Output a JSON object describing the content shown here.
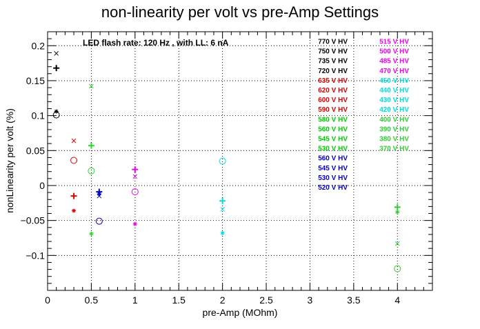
{
  "chart_data": {
    "type": "scatter",
    "title": "non-linearity per volt vs pre-Amp Settings",
    "annotation": "LED flash rate: 120 Hz , with LL: 6 nA",
    "xlabel": "pre-Amp (MOhm)",
    "ylabel": "nonLinearity per volt (%)",
    "xlim": [
      0,
      4.4
    ],
    "ylim": [
      -0.15,
      0.22
    ],
    "xticks": [
      {
        "v": 0,
        "label": "0"
      },
      {
        "v": 0.5,
        "label": "0.5"
      },
      {
        "v": 1,
        "label": "1"
      },
      {
        "v": 1.5,
        "label": "1.5"
      },
      {
        "v": 2,
        "label": "2"
      },
      {
        "v": 2.5,
        "label": "2.5"
      },
      {
        "v": 3,
        "label": "3"
      },
      {
        "v": 3.5,
        "label": "3.5"
      },
      {
        "v": 4,
        "label": "4"
      }
    ],
    "yticks": [
      {
        "v": -0.1,
        "label": "−0.1"
      },
      {
        "v": -0.05,
        "label": "−0.05"
      },
      {
        "v": 0,
        "label": "0"
      },
      {
        "v": 0.05,
        "label": "0.05"
      },
      {
        "v": 0.1,
        "label": "0.1"
      },
      {
        "v": 0.15,
        "label": "0.15"
      },
      {
        "v": 0.2,
        "label": "0.2"
      }
    ],
    "grid": true,
    "legend_position": "top-right",
    "series": [
      {
        "name": "770 V HV",
        "color": "#000000",
        "marker": "x",
        "points": [
          [
            0.1,
            0.189
          ]
        ]
      },
      {
        "name": "750 V HV",
        "color": "#000000",
        "marker": "plus",
        "points": [
          [
            0.1,
            0.168
          ]
        ]
      },
      {
        "name": "735 V HV",
        "color": "#000000",
        "marker": "star",
        "points": [
          [
            0.1,
            0.106
          ]
        ]
      },
      {
        "name": "720 V HV",
        "color": "#000000",
        "marker": "circle",
        "points": [
          [
            0.1,
            0.101
          ]
        ]
      },
      {
        "name": "635 V HV",
        "color": "#dd0000",
        "marker": "x",
        "points": [
          [
            0.3,
            0.064
          ]
        ]
      },
      {
        "name": "620 V HV",
        "color": "#dd0000",
        "marker": "circle",
        "points": [
          [
            0.3,
            0.036
          ]
        ]
      },
      {
        "name": "600 V HV",
        "color": "#dd0000",
        "marker": "plus",
        "points": [
          [
            0.3,
            -0.015
          ]
        ]
      },
      {
        "name": "590 V HV",
        "color": "#dd0000",
        "marker": "star",
        "points": [
          [
            0.3,
            -0.036
          ]
        ]
      },
      {
        "name": "580 V HV",
        "color": "#22dd22",
        "marker": "x",
        "points": [
          [
            0.5,
            0.142
          ]
        ]
      },
      {
        "name": "560 V HV",
        "color": "#22dd22",
        "marker": "plus",
        "points": [
          [
            0.5,
            0.057
          ]
        ]
      },
      {
        "name": "545 V HV",
        "color": "#22dd22",
        "marker": "circle",
        "points": [
          [
            0.5,
            0.021
          ]
        ]
      },
      {
        "name": "530 V HV",
        "color": "#22dd22",
        "marker": "star",
        "points": [
          [
            0.5,
            -0.069
          ]
        ]
      },
      {
        "name": "560 V HV",
        "color": "#0000cc",
        "marker": "plus",
        "points": [
          [
            0.59,
            -0.009
          ]
        ]
      },
      {
        "name": "545 V HV",
        "color": "#0000cc",
        "marker": "star",
        "points": [
          [
            0.59,
            -0.012
          ]
        ]
      },
      {
        "name": "530 V HV",
        "color": "#0000cc",
        "marker": "x",
        "points": [
          [
            0.59,
            -0.015
          ]
        ]
      },
      {
        "name": "520 V HV",
        "color": "#0000cc",
        "marker": "circle",
        "points": [
          [
            0.59,
            -0.051
          ]
        ]
      },
      {
        "name": "515 V HV",
        "color": "#ee00ee",
        "marker": "plus",
        "points": [
          [
            1.0,
            0.023
          ]
        ]
      },
      {
        "name": "500 V HV",
        "color": "#ee00ee",
        "marker": "x",
        "points": [
          [
            1.0,
            0.013
          ]
        ]
      },
      {
        "name": "485 V HV",
        "color": "#ee00ee",
        "marker": "circle",
        "points": [
          [
            1.0,
            -0.009
          ]
        ]
      },
      {
        "name": "470 V HV",
        "color": "#ee00ee",
        "marker": "star",
        "points": [
          [
            1.0,
            -0.055
          ]
        ]
      },
      {
        "name": "450 V HV",
        "color": "#00dddd",
        "marker": "circle",
        "points": [
          [
            2.0,
            0.035
          ]
        ]
      },
      {
        "name": "440 V HV",
        "color": "#00dddd",
        "marker": "plus",
        "points": [
          [
            2.0,
            -0.022
          ]
        ]
      },
      {
        "name": "430 V HV",
        "color": "#00dddd",
        "marker": "x",
        "points": [
          [
            2.0,
            -0.034
          ]
        ]
      },
      {
        "name": "420 V HV",
        "color": "#00dddd",
        "marker": "star",
        "points": [
          [
            2.0,
            -0.068
          ]
        ]
      },
      {
        "name": "400 V HV",
        "color": "#33cc33",
        "marker": "plus",
        "points": [
          [
            4.0,
            -0.031
          ]
        ]
      },
      {
        "name": "390 V HV",
        "color": "#33cc33",
        "marker": "star",
        "points": [
          [
            4.0,
            -0.038
          ]
        ]
      },
      {
        "name": "380 V HV",
        "color": "#33cc33",
        "marker": "x",
        "points": [
          [
            4.0,
            -0.083
          ]
        ]
      },
      {
        "name": "370 V HV",
        "color": "#33cc33",
        "marker": "circle",
        "points": [
          [
            4.0,
            -0.119
          ]
        ]
      }
    ],
    "legend_columns": [
      [
        {
          "label": "770 V HV",
          "color": "#000000"
        },
        {
          "label": "750 V HV",
          "color": "#000000"
        },
        {
          "label": "735 V HV",
          "color": "#000000"
        },
        {
          "label": "720 V HV",
          "color": "#000000"
        },
        {
          "label": "635 V HV",
          "color": "#dd0000"
        },
        {
          "label": "620 V HV",
          "color": "#dd0000"
        },
        {
          "label": "600 V HV",
          "color": "#dd0000"
        },
        {
          "label": "590 V HV",
          "color": "#dd0000"
        },
        {
          "label": "580 V HV",
          "color": "#00cc00"
        },
        {
          "label": "560 V HV",
          "color": "#00cc00"
        },
        {
          "label": "545 V HV",
          "color": "#00cc00"
        },
        {
          "label": "530 V HV",
          "color": "#00cc00"
        },
        {
          "label": "560 V HV",
          "color": "#0000cc"
        },
        {
          "label": "545 V HV",
          "color": "#0000cc"
        },
        {
          "label": "530 V HV",
          "color": "#0000cc"
        },
        {
          "label": "520 V HV",
          "color": "#0000cc"
        }
      ],
      [
        {
          "label": "515 V HV",
          "color": "#ee00ee"
        },
        {
          "label": "500 V HV",
          "color": "#ee00ee"
        },
        {
          "label": "485 V HV",
          "color": "#ee00ee"
        },
        {
          "label": "470 V HV",
          "color": "#ee00ee"
        },
        {
          "label": "450 V HV",
          "color": "#00dddd"
        },
        {
          "label": "440 V HV",
          "color": "#00dddd"
        },
        {
          "label": "430 V HV",
          "color": "#00dddd"
        },
        {
          "label": "420 V HV",
          "color": "#00dddd"
        },
        {
          "label": "400 V HV",
          "color": "#33cc33"
        },
        {
          "label": "390 V HV",
          "color": "#33cc33"
        },
        {
          "label": "380 V HV",
          "color": "#33cc33"
        },
        {
          "label": "370 V HV",
          "color": "#33cc33"
        }
      ]
    ]
  }
}
